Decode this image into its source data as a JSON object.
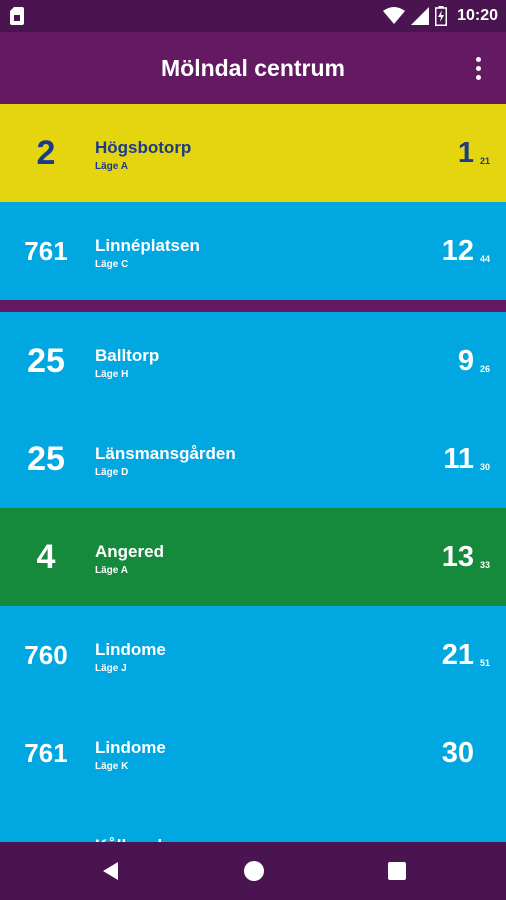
{
  "status_bar": {
    "time": "10:20",
    "icons": [
      "sim-card-icon",
      "wifi-icon",
      "cellular-signal-icon",
      "battery-charging-icon"
    ]
  },
  "app_bar": {
    "title": "Mölndal centrum",
    "menu_icon": "more-vert-icon"
  },
  "colors": {
    "purple": "#631a62",
    "yellow": "#e4d50f",
    "blue": "#00a7e1",
    "green": "#168a3c",
    "dark_blue_text": "#1b3a8a",
    "white": "#ffffff"
  },
  "departures": [
    {
      "line": "2",
      "destination": "Högsbotorp",
      "stop": "Läge A",
      "minutes": "1",
      "next": "21",
      "bg": "#e4d50f",
      "fg": "#1b3a8a"
    },
    {
      "line": "761",
      "destination": "Linnéplatsen",
      "stop": "Läge C",
      "minutes": "12",
      "next": "44",
      "bg": "#00a7e1",
      "fg": "#ffffff"
    },
    {
      "line": "25",
      "destination": "Balltorp",
      "stop": "Läge H",
      "minutes": "9",
      "next": "26",
      "bg": "#00a7e1",
      "fg": "#ffffff"
    },
    {
      "line": "25",
      "destination": "Länsmansgården",
      "stop": "Läge D",
      "minutes": "11",
      "next": "30",
      "bg": "#00a7e1",
      "fg": "#ffffff"
    },
    {
      "line": "4",
      "destination": "Angered",
      "stop": "Läge A",
      "minutes": "13",
      "next": "33",
      "bg": "#168a3c",
      "fg": "#ffffff"
    },
    {
      "line": "760",
      "destination": "Lindome",
      "stop": "Läge J",
      "minutes": "21",
      "next": "51",
      "bg": "#00a7e1",
      "fg": "#ffffff"
    },
    {
      "line": "761",
      "destination": "Lindome",
      "stop": "Läge K",
      "minutes": "30",
      "next": "",
      "bg": "#00a7e1",
      "fg": "#ffffff"
    },
    {
      "line": "",
      "destination": "Kållered",
      "stop": "",
      "minutes": "",
      "next": "",
      "bg": "#00a7e1",
      "fg": "#ffffff"
    }
  ],
  "nav_bar": {
    "buttons": [
      "back-icon",
      "home-icon",
      "recents-icon"
    ]
  }
}
